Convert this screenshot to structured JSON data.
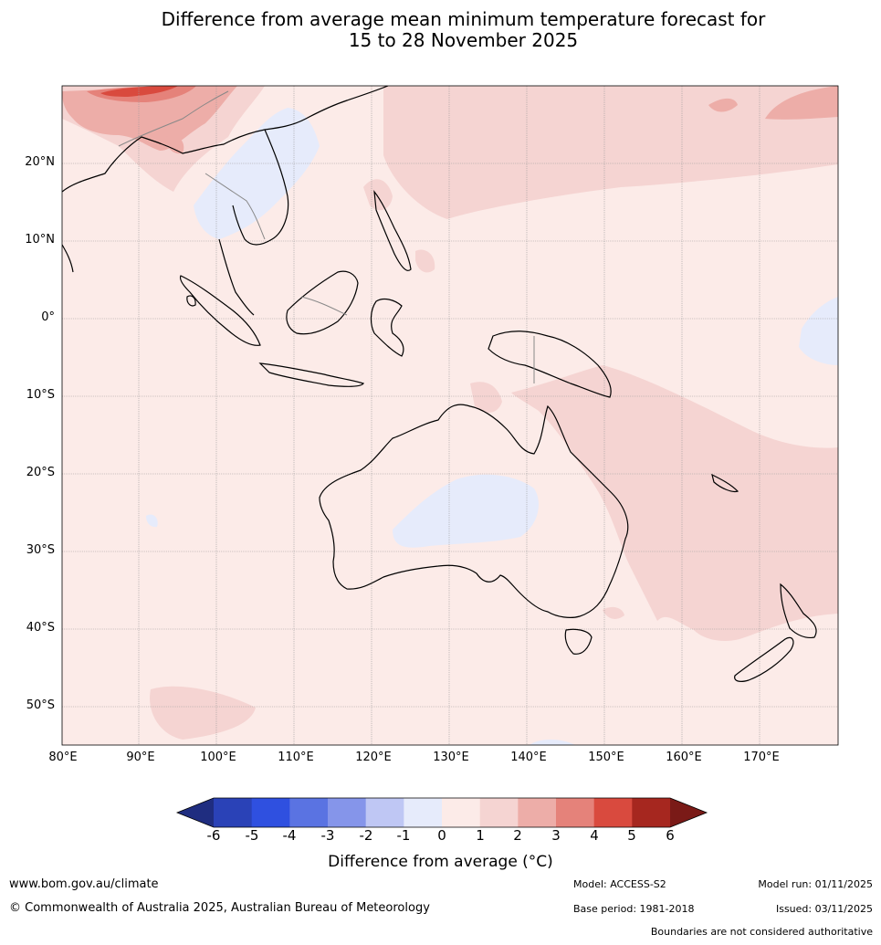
{
  "title_line1": "Difference from average mean minimum temperature forecast for",
  "title_line2": "15 to 28 November 2025",
  "map": {
    "lat_labels": [
      "20°N",
      "10°N",
      "0°",
      "10°S",
      "20°S",
      "30°S",
      "40°S",
      "50°S"
    ],
    "lon_labels": [
      "80°E",
      "90°E",
      "100°E",
      "110°E",
      "120°E",
      "130°E",
      "140°E",
      "150°E",
      "160°E",
      "170°E"
    ],
    "lon_range": [
      80,
      180
    ],
    "lat_range": [
      -55,
      30
    ]
  },
  "colorbar": {
    "title": "Difference from average (°C)",
    "ticks": [
      "-6",
      "-5",
      "-4",
      "-3",
      "-2",
      "-1",
      "0",
      "1",
      "2",
      "3",
      "4",
      "5",
      "6"
    ],
    "colors": [
      "#1f2d80",
      "#2a42b7",
      "#2f50e0",
      "#5a73e2",
      "#8595ea",
      "#bfc7f4",
      "#e6ebfb",
      "#fcebe8",
      "#f5d4d2",
      "#edada8",
      "#e5827a",
      "#d94a3e",
      "#a6271f",
      "#7a1a17"
    ]
  },
  "footer": {
    "website": "www.bom.gov.au/climate",
    "copyright": "© Commonwealth of Australia 2025, Australian Bureau of Meteorology",
    "model": "Model: ACCESS-S2",
    "model_run": "Model run: 01/11/2025",
    "base_period": "Base period: 1981-2018",
    "issued": "Issued: 03/11/2025",
    "boundaries_note": "Boundaries are not considered authoritative"
  }
}
